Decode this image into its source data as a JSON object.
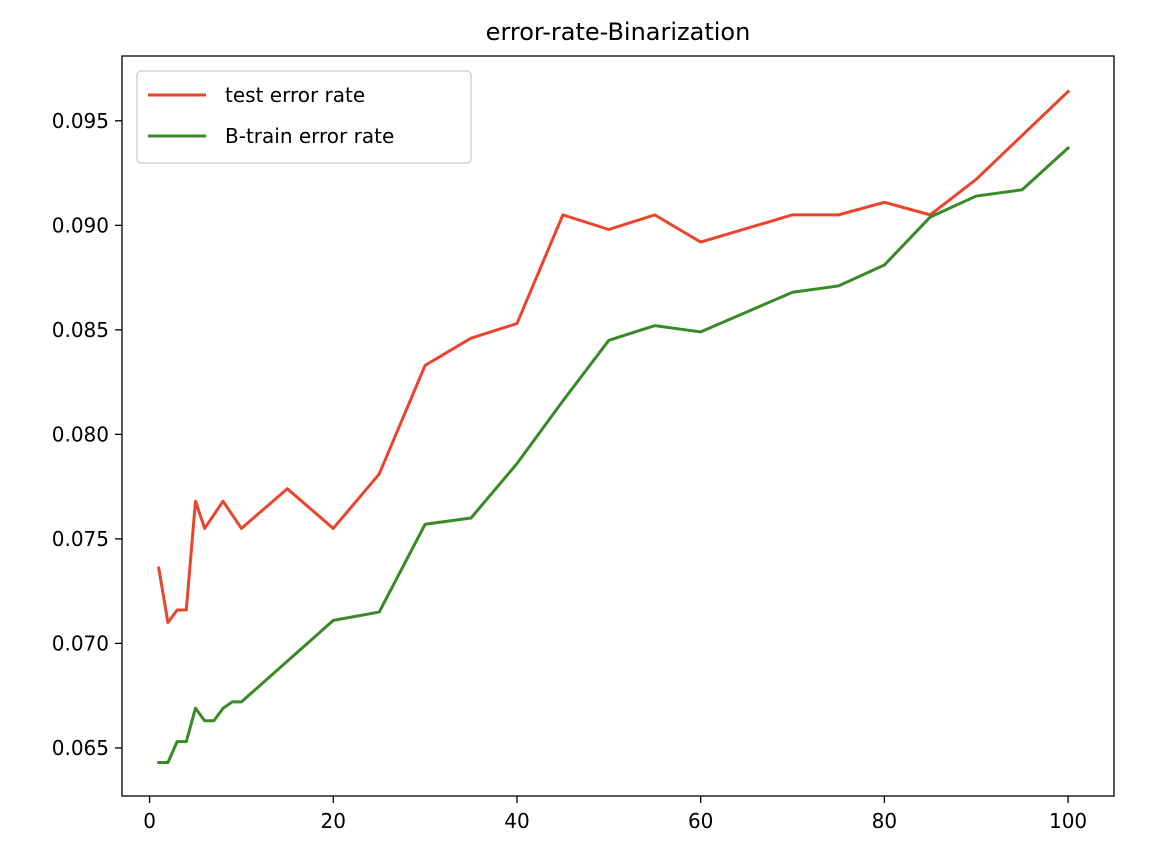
{
  "chart_data": {
    "type": "line",
    "title": "error-rate-Binarization",
    "xlabel": "",
    "ylabel": "",
    "xlim": [
      -3,
      105
    ],
    "ylim": [
      0.0627,
      0.0981
    ],
    "xticks": [
      0,
      20,
      40,
      60,
      80,
      100
    ],
    "yticks": [
      0.065,
      0.07,
      0.075,
      0.08,
      0.085,
      0.09,
      0.095
    ],
    "xtick_labels": [
      "0",
      "20",
      "40",
      "60",
      "80",
      "100"
    ],
    "ytick_labels": [
      "0.065",
      "0.070",
      "0.075",
      "0.080",
      "0.085",
      "0.090",
      "0.095"
    ],
    "grid": false,
    "legend_position": "upper-left",
    "series": [
      {
        "name": "test error rate",
        "color": "#e8452c",
        "x": [
          1,
          2,
          3,
          4,
          5,
          6,
          8,
          10,
          15,
          20,
          25,
          30,
          35,
          40,
          45,
          50,
          55,
          60,
          70,
          75,
          80,
          85,
          90,
          100
        ],
        "values": [
          0.0736,
          0.071,
          0.0716,
          0.0716,
          0.0768,
          0.0755,
          0.0768,
          0.0755,
          0.0774,
          0.0755,
          0.0781,
          0.0833,
          0.0846,
          0.0853,
          0.0905,
          0.0898,
          0.0905,
          0.0892,
          0.0905,
          0.0905,
          0.0911,
          0.0905,
          0.0922,
          0.0964
        ]
      },
      {
        "name": "B-train error rate",
        "color": "#378a25",
        "x": [
          1,
          2,
          3,
          4,
          5,
          6,
          7,
          8,
          9,
          10,
          20,
          25,
          30,
          35,
          40,
          45,
          50,
          55,
          60,
          70,
          75,
          80,
          85,
          90,
          95,
          100
        ],
        "values": [
          0.0643,
          0.0643,
          0.0653,
          0.0653,
          0.0669,
          0.0663,
          0.0663,
          0.0669,
          0.0672,
          0.0672,
          0.0711,
          0.0715,
          0.0757,
          0.076,
          0.0786,
          0.0816,
          0.0845,
          0.0852,
          0.0849,
          0.0868,
          0.0871,
          0.0881,
          0.0904,
          0.0914,
          0.0917,
          0.0937
        ]
      }
    ]
  }
}
